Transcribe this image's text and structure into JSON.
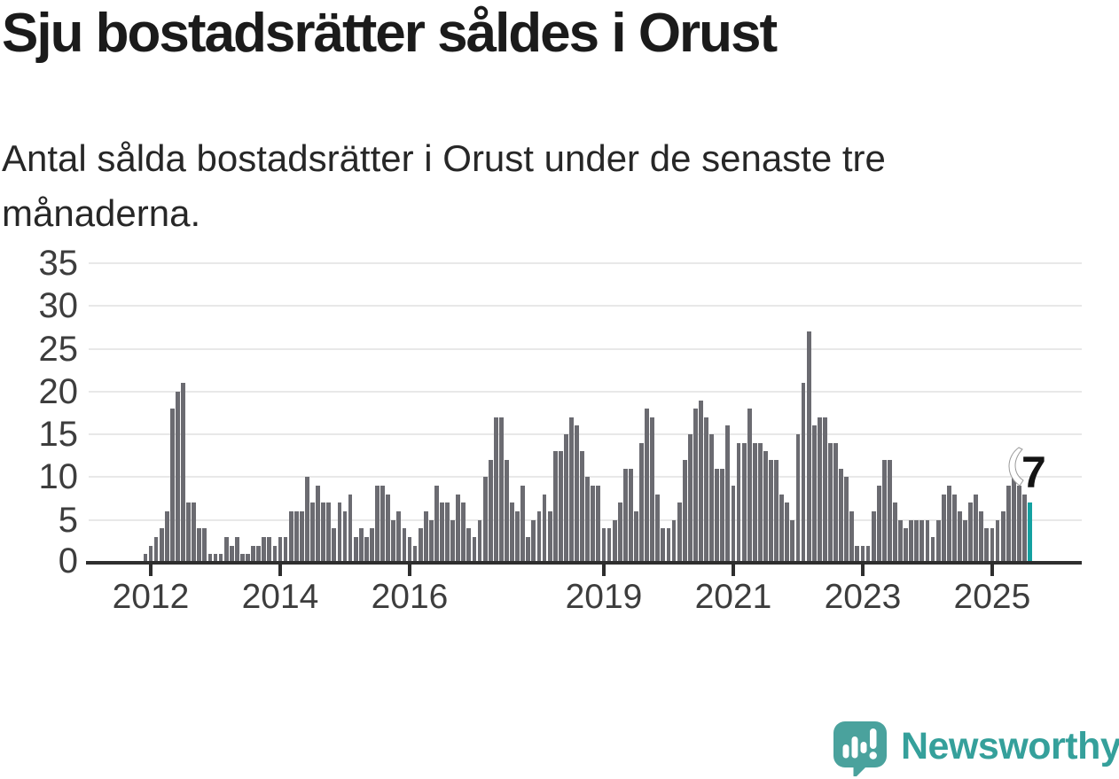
{
  "chart_data": {
    "type": "bar",
    "title": "Sju bostadsrätter såldes i Orust",
    "subtitle": "Antal sålda bostadsrätter i Orust under de senaste tre månaderna.",
    "xlabel": "",
    "ylabel": "",
    "ylim": [
      0,
      35
    ],
    "yticks": [
      0,
      5,
      10,
      15,
      20,
      25,
      30,
      35
    ],
    "xticks": [
      "2012",
      "2014",
      "2016",
      "2019",
      "2021",
      "2023",
      "2025"
    ],
    "grid": "horizontal",
    "legend": "none",
    "bar_color": "#6b6b71",
    "highlight_color": "#14a1a1",
    "first_bar_label": "2011-12",
    "values": [
      1,
      2,
      3,
      4,
      6,
      18,
      20,
      21,
      7,
      7,
      4,
      4,
      1,
      1,
      1,
      3,
      2,
      3,
      1,
      1,
      2,
      2,
      3,
      3,
      2,
      3,
      3,
      6,
      6,
      6,
      10,
      7,
      9,
      7,
      7,
      4,
      7,
      6,
      8,
      3,
      4,
      3,
      4,
      9,
      9,
      8,
      5,
      6,
      4,
      3,
      2,
      4,
      6,
      5,
      9,
      7,
      7,
      5,
      8,
      7,
      4,
      3,
      5,
      10,
      12,
      17,
      17,
      12,
      7,
      6,
      9,
      3,
      5,
      6,
      8,
      6,
      13,
      13,
      15,
      17,
      16,
      13,
      10,
      9,
      9,
      4,
      4,
      5,
      7,
      11,
      11,
      6,
      14,
      18,
      17,
      8,
      4,
      4,
      5,
      7,
      12,
      15,
      18,
      19,
      17,
      15,
      11,
      11,
      16,
      9,
      14,
      14,
      18,
      14,
      14,
      13,
      12,
      12,
      8,
      7,
      5,
      15,
      21,
      27,
      16,
      17,
      17,
      14,
      14,
      11,
      10,
      6,
      2,
      2,
      2,
      6,
      9,
      12,
      12,
      7,
      5,
      4,
      5,
      5,
      5,
      5,
      3,
      5,
      8,
      9,
      8,
      6,
      5,
      7,
      8,
      6,
      4,
      4,
      5,
      6,
      9,
      11,
      9,
      8,
      7
    ],
    "highlight_last": true,
    "annotation": {
      "text": "7"
    }
  },
  "footer": {
    "brand": "Newsworthy"
  }
}
